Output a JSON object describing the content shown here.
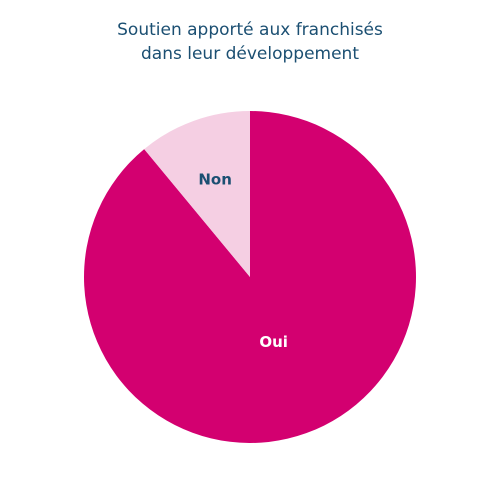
{
  "chart_data": {
    "type": "pie",
    "title_lines": [
      "Soutien apporté aux franchisés",
      "dans leur développement"
    ],
    "categories": [
      "Oui",
      "Non"
    ],
    "values": [
      89,
      11
    ],
    "colors": [
      "#d30070",
      "#f5cfe3"
    ],
    "label_colors": [
      "#ffffff",
      "#1b4f72"
    ],
    "legend": "none"
  }
}
